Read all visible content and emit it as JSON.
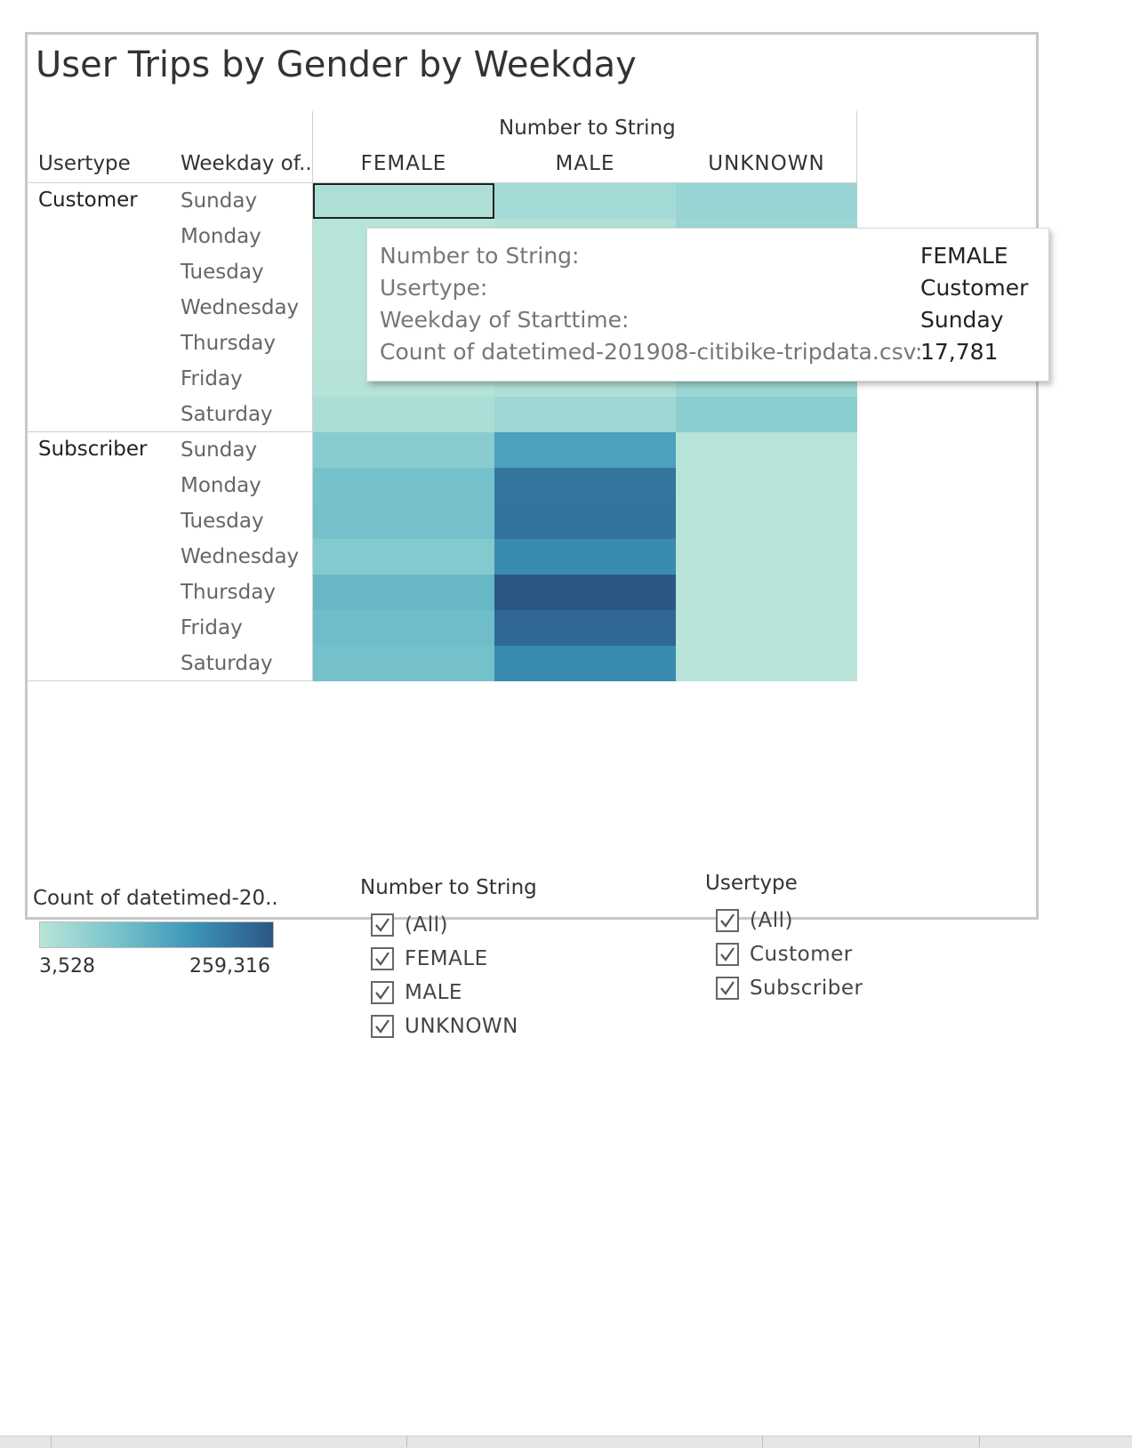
{
  "chart_data": {
    "type": "heatmap",
    "title": "User Trips by Gender by Weekday",
    "column_header_title": "Number to String",
    "row_headers": [
      "Usertype",
      "Weekday of.."
    ],
    "columns": [
      "FEMALE",
      "MALE",
      "UNKNOWN"
    ],
    "usertypes": [
      "Customer",
      "Subscriber"
    ],
    "weekdays": [
      "Sunday",
      "Monday",
      "Tuesday",
      "Wednesday",
      "Thursday",
      "Friday",
      "Saturday"
    ],
    "values": {
      "Customer": [
        [
          17781,
          30000,
          45000
        ],
        [
          6000,
          15000,
          40000
        ],
        [
          5000,
          13000,
          38000
        ],
        [
          5000,
          13000,
          38000
        ],
        [
          6000,
          14000,
          38000
        ],
        [
          8000,
          18000,
          40000
        ],
        [
          22000,
          38000,
          62000
        ]
      ],
      "Subscriber": [
        [
          65000,
          150000,
          7000
        ],
        [
          90000,
          215000,
          5000
        ],
        [
          92000,
          218000,
          5000
        ],
        [
          72000,
          185000,
          5000
        ],
        [
          110000,
          259316,
          5000
        ],
        [
          100000,
          235000,
          5000
        ],
        [
          92000,
          185000,
          5000
        ]
      ]
    },
    "color_min": 3528,
    "color_max": 259316,
    "colors": [
      "#b9e5d9",
      "#76c3cc",
      "#3b93b6",
      "#2b5785"
    ]
  },
  "tooltip": {
    "rows": [
      {
        "label": "Number to String:",
        "value": "FEMALE"
      },
      {
        "label": "Usertype:",
        "value": "Customer"
      },
      {
        "label": "Weekday of Starttime:",
        "value": "Sunday"
      },
      {
        "label": "Count of datetimed-201908-citibike-tripdata.csv:",
        "value": "17,781"
      }
    ]
  },
  "legend": {
    "title": "Count of datetimed-20..",
    "min_label": "3,528",
    "max_label": "259,316"
  },
  "filters": [
    {
      "title": "Number to String",
      "options": [
        "(All)",
        "FEMALE",
        "MALE",
        "UNKNOWN"
      ]
    },
    {
      "title": "Usertype",
      "options": [
        "(All)",
        "Customer",
        "Subscriber"
      ]
    }
  ]
}
